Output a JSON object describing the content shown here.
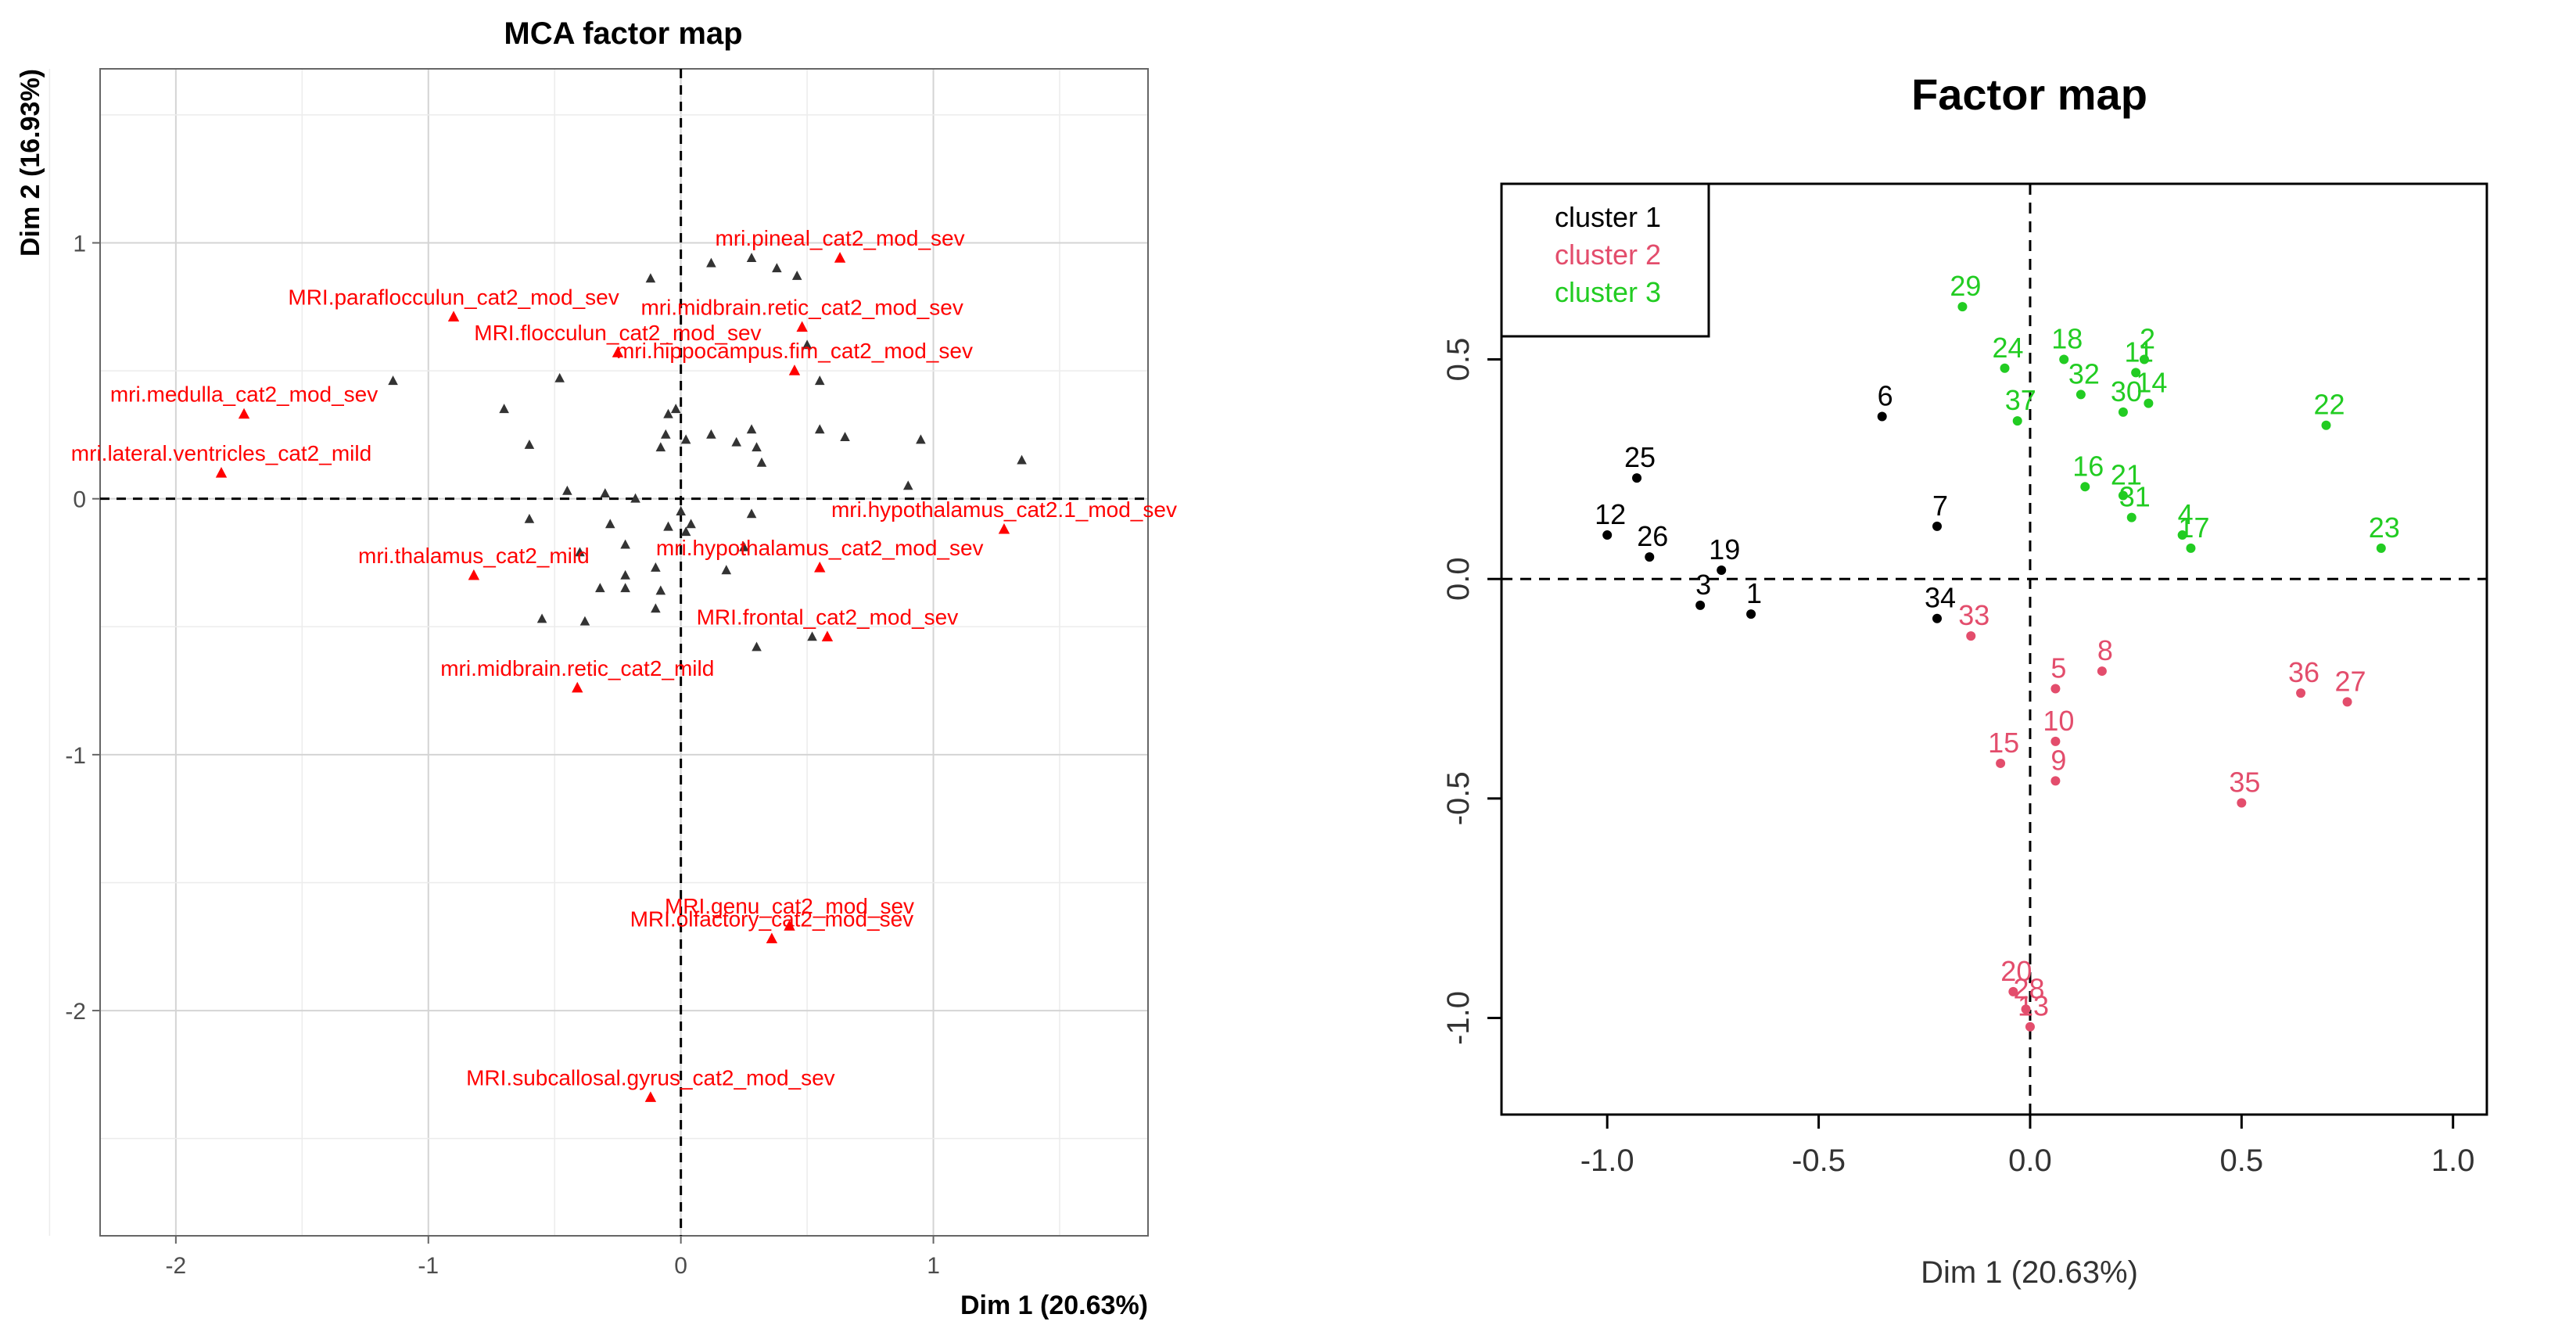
{
  "chart_data": [
    {
      "type": "scatter",
      "title": "MCA factor map",
      "xlabel": "Dim 1 (20.63%)",
      "ylabel": "Dim 2 (16.93%)",
      "xlim": [
        -2.3,
        1.85
      ],
      "ylim": [
        -2.88,
        1.68
      ],
      "xticks": [
        -2,
        -1,
        0,
        1
      ],
      "yticks": [
        1,
        0,
        -1,
        -2
      ],
      "grid": true,
      "colors": {
        "highlighted": "#ff0000",
        "other": "#333333"
      },
      "labeled_points": [
        {
          "label": "mri.pineal_cat2_mod_sev",
          "x": 0.63,
          "y": 0.94
        },
        {
          "label": "mri.midbrain.retic_cat2_mod_sev",
          "x": 0.48,
          "y": 0.67
        },
        {
          "label": "MRI.paraflocculun_cat2_mod_sev",
          "x": -0.9,
          "y": 0.71
        },
        {
          "label": "MRI.flocculun_cat2_mod_sev",
          "x": -0.25,
          "y": 0.57
        },
        {
          "label": "mri.hippocampus.fim_cat2_mod_sev",
          "x": 0.45,
          "y": 0.5
        },
        {
          "label": "mri.medulla_cat2_mod_sev",
          "x": -1.73,
          "y": 0.33
        },
        {
          "label": "mri.lateral.ventricles_cat2_mild",
          "x": -1.82,
          "y": 0.1
        },
        {
          "label": "mri.hypothalamus_cat2.1_mod_sev",
          "x": 1.28,
          "y": -0.12
        },
        {
          "label": "mri.hypothalamus_cat2_mod_sev",
          "x": 0.55,
          "y": -0.27
        },
        {
          "label": "mri.thalamus_cat2_mild",
          "x": -0.82,
          "y": -0.3
        },
        {
          "label": "MRI.frontal_cat2_mod_sev",
          "x": 0.58,
          "y": -0.54
        },
        {
          "label": "mri.midbrain.retic_cat2_mild",
          "x": -0.41,
          "y": -0.74
        },
        {
          "label": "MRI.genu_cat2_mod_sev",
          "x": 0.43,
          "y": -1.67
        },
        {
          "label": "MRI.olfactory_cat2_mod_sev",
          "x": 0.36,
          "y": -1.72
        },
        {
          "label": "MRI.subcallosal.gyrus_cat2_mod_sev",
          "x": -0.12,
          "y": -2.34
        }
      ],
      "unlabeled_points": [
        {
          "x": -1.14,
          "y": 0.46
        },
        {
          "x": -0.7,
          "y": 0.35
        },
        {
          "x": -0.48,
          "y": 0.47
        },
        {
          "x": -0.12,
          "y": 0.86
        },
        {
          "x": 0.12,
          "y": 0.92
        },
        {
          "x": 0.28,
          "y": 0.94
        },
        {
          "x": 0.38,
          "y": 0.9
        },
        {
          "x": 0.46,
          "y": 0.87
        },
        {
          "x": 0.5,
          "y": 0.6
        },
        {
          "x": 0.55,
          "y": 0.46
        },
        {
          "x": -0.05,
          "y": 0.33
        },
        {
          "x": -0.02,
          "y": 0.35
        },
        {
          "x": 0.22,
          "y": 0.22
        },
        {
          "x": 0.3,
          "y": 0.2
        },
        {
          "x": 0.28,
          "y": 0.27
        },
        {
          "x": -0.6,
          "y": 0.21
        },
        {
          "x": -0.08,
          "y": 0.2
        },
        {
          "x": 0.02,
          "y": 0.23
        },
        {
          "x": -0.06,
          "y": 0.25
        },
        {
          "x": 0.12,
          "y": 0.25
        },
        {
          "x": 0.55,
          "y": 0.27
        },
        {
          "x": 0.65,
          "y": 0.24
        },
        {
          "x": 0.95,
          "y": 0.23
        },
        {
          "x": 1.35,
          "y": 0.15
        },
        {
          "x": 0.32,
          "y": 0.14
        },
        {
          "x": 0.9,
          "y": 0.05
        },
        {
          "x": -0.45,
          "y": 0.03
        },
        {
          "x": -0.3,
          "y": 0.02
        },
        {
          "x": -0.18,
          "y": 0.0
        },
        {
          "x": 0.0,
          "y": -0.05
        },
        {
          "x": 0.28,
          "y": -0.06
        },
        {
          "x": -0.6,
          "y": -0.08
        },
        {
          "x": -0.28,
          "y": -0.1
        },
        {
          "x": -0.05,
          "y": -0.11
        },
        {
          "x": 0.02,
          "y": -0.13
        },
        {
          "x": 0.04,
          "y": -0.1
        },
        {
          "x": -0.22,
          "y": -0.18
        },
        {
          "x": -0.4,
          "y": -0.21
        },
        {
          "x": 0.25,
          "y": -0.19
        },
        {
          "x": -0.1,
          "y": -0.27
        },
        {
          "x": 0.18,
          "y": -0.28
        },
        {
          "x": -0.22,
          "y": -0.3
        },
        {
          "x": -0.32,
          "y": -0.35
        },
        {
          "x": -0.22,
          "y": -0.35
        },
        {
          "x": -0.08,
          "y": -0.36
        },
        {
          "x": -0.55,
          "y": -0.47
        },
        {
          "x": -0.38,
          "y": -0.48
        },
        {
          "x": 0.3,
          "y": -0.58
        },
        {
          "x": 0.52,
          "y": -0.54
        },
        {
          "x": -0.1,
          "y": -0.43
        }
      ]
    },
    {
      "type": "scatter",
      "title": "Factor map",
      "xlabel": "Dim 1 (20.63%)",
      "ylabel": "",
      "xlim": [
        -1.25,
        1.08
      ],
      "ylim": [
        -1.22,
        0.9
      ],
      "xticks": [
        "-1.0",
        "-0.5",
        "0.0",
        "0.5",
        "1.0"
      ],
      "yticks": [
        "0.5",
        "0.0",
        "-0.5",
        "-1.0"
      ],
      "grid": false,
      "legend": {
        "position": "top-left",
        "entries": [
          {
            "label": "cluster 1",
            "color": "#000000"
          },
          {
            "label": "cluster 2",
            "color": "#e34d6c"
          },
          {
            "label": "cluster 3",
            "color": "#22cc22"
          }
        ]
      },
      "series": [
        {
          "name": "cluster 1",
          "color": "#000000",
          "points": [
            {
              "label": "6",
              "x": -0.35,
              "y": 0.37
            },
            {
              "label": "25",
              "x": -0.93,
              "y": 0.23
            },
            {
              "label": "7",
              "x": -0.22,
              "y": 0.12
            },
            {
              "label": "12",
              "x": -1.0,
              "y": 0.1
            },
            {
              "label": "26",
              "x": -0.9,
              "y": 0.05
            },
            {
              "label": "19",
              "x": -0.73,
              "y": 0.02
            },
            {
              "label": "3",
              "x": -0.78,
              "y": -0.06
            },
            {
              "label": "1",
              "x": -0.66,
              "y": -0.08
            },
            {
              "label": "34",
              "x": -0.22,
              "y": -0.09
            }
          ]
        },
        {
          "name": "cluster 2",
          "color": "#e34d6c",
          "points": [
            {
              "label": "33",
              "x": -0.14,
              "y": -0.13
            },
            {
              "label": "8",
              "x": 0.17,
              "y": -0.21
            },
            {
              "label": "5",
              "x": 0.06,
              "y": -0.25
            },
            {
              "label": "36",
              "x": 0.64,
              "y": -0.26
            },
            {
              "label": "27",
              "x": 0.75,
              "y": -0.28
            },
            {
              "label": "10",
              "x": 0.06,
              "y": -0.37
            },
            {
              "label": "15",
              "x": -0.07,
              "y": -0.42
            },
            {
              "label": "9",
              "x": 0.06,
              "y": -0.46
            },
            {
              "label": "35",
              "x": 0.5,
              "y": -0.51
            },
            {
              "label": "20",
              "x": -0.04,
              "y": -0.94
            },
            {
              "label": "28",
              "x": -0.01,
              "y": -0.98
            },
            {
              "label": "13",
              "x": 0.0,
              "y": -1.02
            }
          ]
        },
        {
          "name": "cluster 3",
          "color": "#22cc22",
          "points": [
            {
              "label": "29",
              "x": -0.16,
              "y": 0.62
            },
            {
              "label": "24",
              "x": -0.06,
              "y": 0.48
            },
            {
              "label": "18",
              "x": 0.08,
              "y": 0.5
            },
            {
              "label": "11",
              "x": 0.25,
              "y": 0.47
            },
            {
              "label": "2",
              "x": 0.27,
              "y": 0.5
            },
            {
              "label": "32",
              "x": 0.12,
              "y": 0.42
            },
            {
              "label": "14",
              "x": 0.28,
              "y": 0.4
            },
            {
              "label": "37",
              "x": -0.03,
              "y": 0.36
            },
            {
              "label": "30",
              "x": 0.22,
              "y": 0.38
            },
            {
              "label": "22",
              "x": 0.7,
              "y": 0.35
            },
            {
              "label": "16",
              "x": 0.13,
              "y": 0.21
            },
            {
              "label": "21",
              "x": 0.22,
              "y": 0.19
            },
            {
              "label": "31",
              "x": 0.24,
              "y": 0.14
            },
            {
              "label": "4",
              "x": 0.36,
              "y": 0.1
            },
            {
              "label": "17",
              "x": 0.38,
              "y": 0.07
            },
            {
              "label": "23",
              "x": 0.83,
              "y": 0.07
            }
          ]
        }
      ]
    }
  ]
}
